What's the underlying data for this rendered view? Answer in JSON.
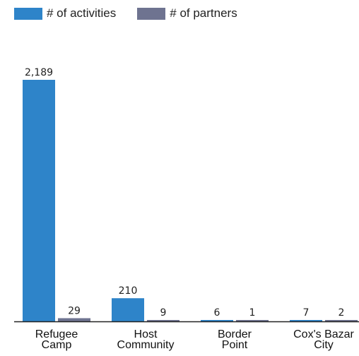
{
  "chart_data": {
    "type": "bar",
    "categories": [
      [
        "Refugee",
        "Camp"
      ],
      [
        "Host",
        "Community"
      ],
      [
        "Border",
        "Point"
      ],
      [
        "Cox's Bazar",
        "City"
      ]
    ],
    "series": [
      {
        "name": "# of activities",
        "color": "#2e84c9",
        "values": [
          2189,
          210,
          6,
          7
        ],
        "labels": [
          "2,189",
          "210",
          "6",
          "7"
        ]
      },
      {
        "name": "# of partners",
        "color": "#6e7390",
        "values": [
          29,
          9,
          1,
          2
        ],
        "labels": [
          "29",
          "9",
          "1",
          "2"
        ]
      }
    ],
    "ylim": [
      0,
      2189
    ],
    "grid": false,
    "legend_position": "top-left"
  }
}
